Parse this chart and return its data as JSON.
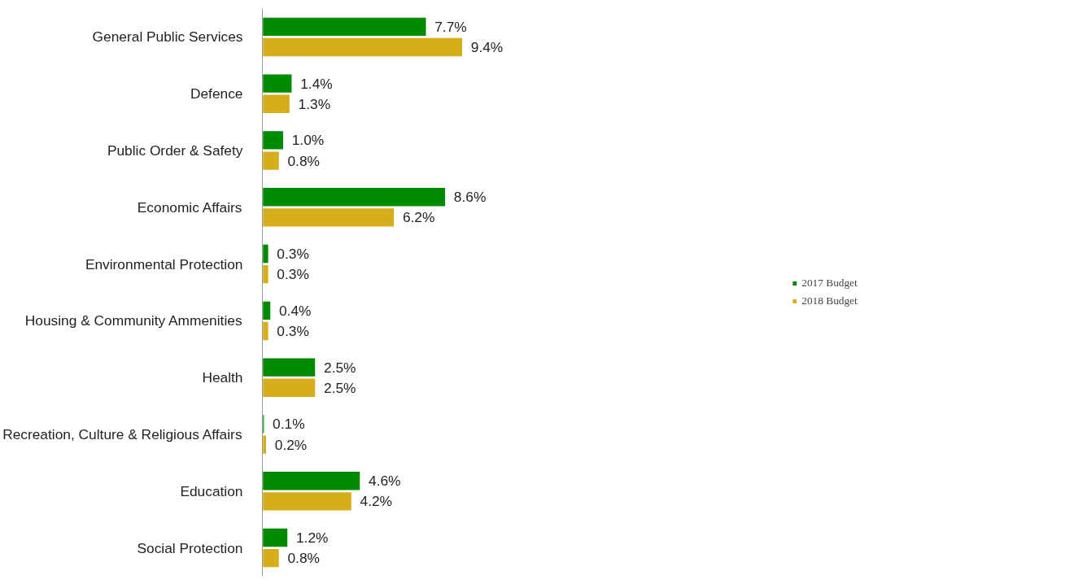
{
  "chart_data": {
    "type": "bar",
    "orientation": "horizontal",
    "categories": [
      "General Public Services",
      "Defence",
      "Public Order & Safety",
      "Economic Affairs",
      "Environmental Protection",
      "Housing & Community Ammenities",
      "Health",
      "Recreation, Culture & Religious Affairs",
      "Education",
      "Social Protection"
    ],
    "series": [
      {
        "name": "2017 Budget",
        "color": "#008a00",
        "values": [
          7.7,
          1.4,
          1.0,
          8.6,
          0.3,
          0.4,
          2.5,
          0.1,
          4.6,
          1.2
        ],
        "value_labels": [
          "7.7%",
          "1.4%",
          "1.0%",
          "8.6%",
          "0.3%",
          "0.4%",
          "2.5%",
          "0.1%",
          "4.6%",
          "1.2%"
        ]
      },
      {
        "name": "2018 Budget",
        "color": "#d6ae1c",
        "values": [
          9.4,
          1.3,
          0.8,
          6.2,
          0.3,
          0.3,
          2.5,
          0.2,
          4.2,
          0.8
        ],
        "value_labels": [
          "9.4%",
          "1.3%",
          "0.8%",
          "6.2%",
          "0.3%",
          "0.3%",
          "2.5%",
          "0.2%",
          "4.2%",
          "0.8%"
        ]
      }
    ],
    "grid": false,
    "legend": "right",
    "tick_labels": "y"
  }
}
